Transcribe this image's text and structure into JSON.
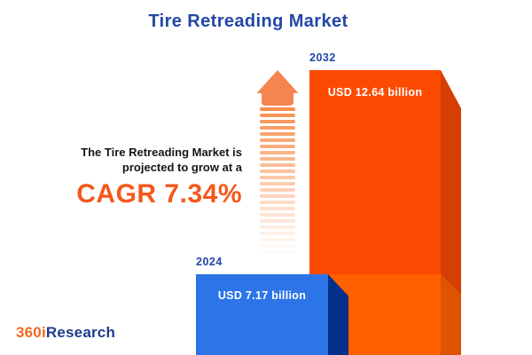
{
  "page": {
    "background": "#FFFFFF"
  },
  "header": {
    "title": "Tire Retreading Market",
    "title_color": "#2447A6"
  },
  "highlight": {
    "line1": "The Tire Retreading Market is",
    "line2": "projected to grow at a",
    "cagr_label": "CAGR 7.34%",
    "cagr_color": "#F4581C",
    "text_color": "#161616"
  },
  "chart_data": {
    "type": "bar",
    "title": "Tire Retreading Market",
    "unit": "USD billion",
    "cagr_percent": 7.34,
    "categories": [
      "2024",
      "2032"
    ],
    "values": [
      7.17,
      12.64
    ],
    "legend": "none",
    "axes": "hidden",
    "bars": [
      {
        "year": "2024",
        "value": 7.17,
        "value_label": "USD 7.17 billion",
        "front_color": "#2E74E9",
        "side_color": "#04308A",
        "label_color": "#2447A6"
      },
      {
        "year": "2032",
        "value": 12.64,
        "value_label": "USD 12.64 billion",
        "front_color": "#FC4A02",
        "side_color": "#D63E04",
        "label_color": "#2447A6"
      }
    ]
  },
  "decor": {
    "growth_arrow": {
      "head_color": "#F5854E",
      "stripe_color": "#F78E4E",
      "stripe_count": 24
    },
    "accent_segment": {
      "front_color": "#FF6000",
      "side_color": "#E05301"
    }
  },
  "footer": {
    "logo_prefix": "360i",
    "logo_suffix": "Research",
    "logo_prefix_color": "#F26A21",
    "logo_suffix_color": "#1F3C8F"
  }
}
